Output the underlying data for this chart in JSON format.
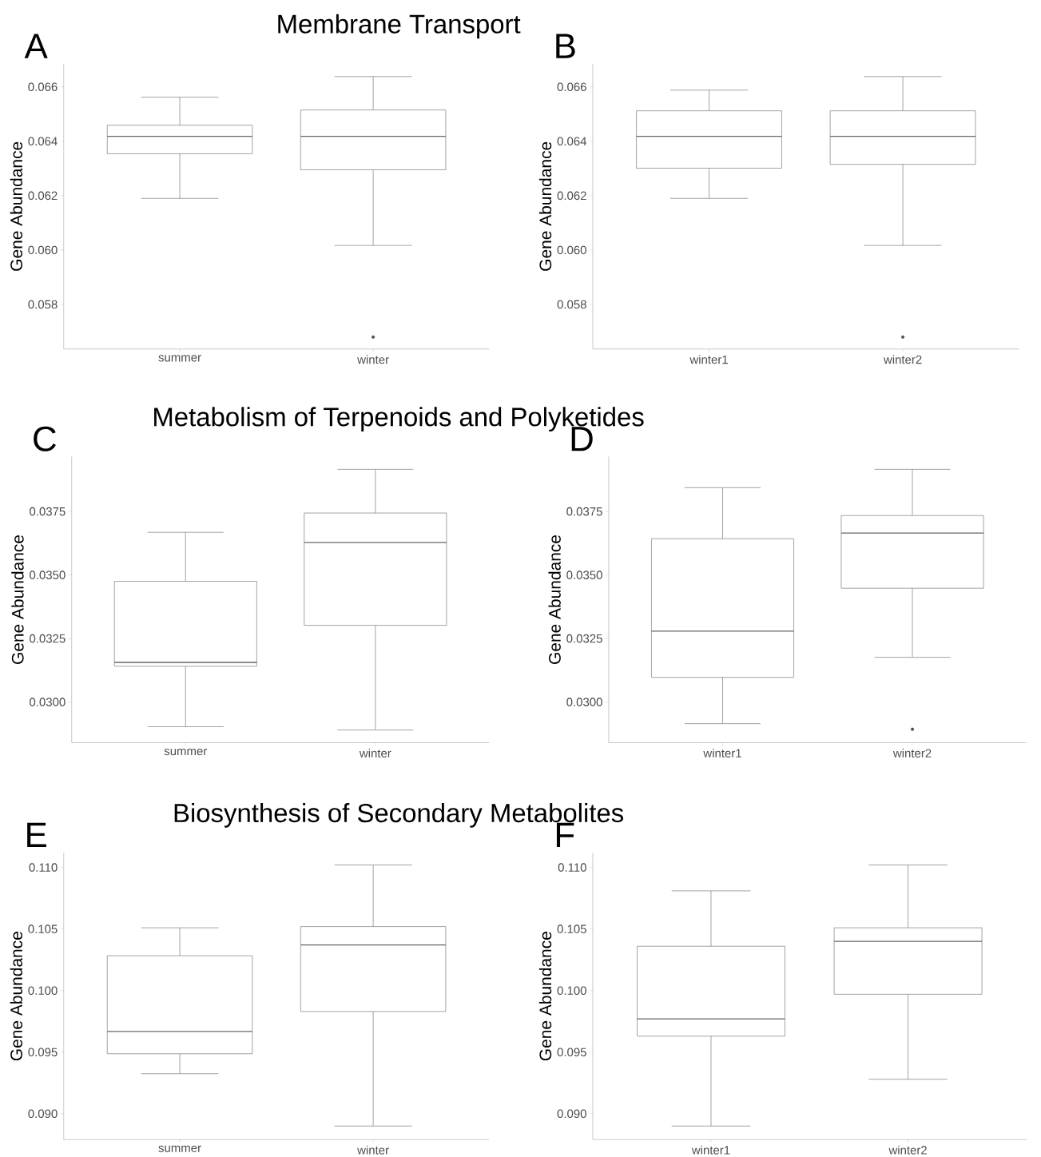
{
  "chart_data": [
    {
      "type": "box",
      "title": "Membrane Transport",
      "annotations": [
        "A"
      ],
      "ylabel": "Gene Abundance",
      "categories": [
        "summer",
        "winter"
      ],
      "color": "#8c8c8c",
      "ylim": [
        0.05636,
        0.06685
      ],
      "yticks": [
        0.058,
        {
          "value": 0.06,
          "label": "0.060"
        },
        0.062,
        0.064,
        0.066
      ],
      "boxes": [
        {
          "low": 0.0619,
          "q1": 0.06354,
          "median": 0.06418,
          "q3": 0.06459,
          "high": 0.06562
        },
        {
          "low": 0.06017,
          "q1": 0.06295,
          "median": 0.06418,
          "q3": 0.06515,
          "high": 0.06638,
          "outliers": [
            0.0568
          ]
        }
      ]
    },
    {
      "type": "box",
      "annotations": [
        "B"
      ],
      "ylabel": "Gene Abundance",
      "categories": [
        "winter1",
        "winter2"
      ],
      "color": "#8c8c8c",
      "ylim": [
        0.05636,
        0.06685
      ],
      "yticks": [
        0.058,
        {
          "value": 0.06,
          "label": "0.060"
        },
        0.062,
        0.064,
        0.066
      ],
      "boxes": [
        {
          "low": 0.0619,
          "q1": 0.06301,
          "median": 0.06418,
          "q3": 0.06512,
          "high": 0.06588
        },
        {
          "low": 0.06017,
          "q1": 0.06315,
          "median": 0.06418,
          "q3": 0.06512,
          "high": 0.06638,
          "outliers": [
            0.0568
          ]
        }
      ]
    },
    {
      "type": "box",
      "title": "Metabolism of Terpenoids and Polyketides",
      "annotations": [
        "C"
      ],
      "ylabel": "Gene Abundance",
      "categories": [
        "summer",
        "winter"
      ],
      "color": "#8c8c8c",
      "ylim": [
        0.0284,
        0.03966
      ],
      "yticks": [
        {
          "value": 0.03,
          "label": "0.0300"
        },
        0.0325,
        {
          "value": 0.035,
          "label": "0.0350"
        },
        0.0375
      ],
      "boxes": [
        {
          "low": 0.02903,
          "q1": 0.03141,
          "median": 0.03156,
          "q3": 0.03475,
          "high": 0.03668
        },
        {
          "low": 0.0289,
          "q1": 0.03302,
          "median": 0.03628,
          "q3": 0.03744,
          "high": 0.03916
        }
      ]
    },
    {
      "type": "box",
      "annotations": [
        "D"
      ],
      "ylabel": "Gene Abundance",
      "categories": [
        "winter1",
        "winter2"
      ],
      "color": "#8c8c8c",
      "ylim": [
        0.0284,
        0.03966
      ],
      "yticks": [
        {
          "value": 0.03,
          "label": "0.0300"
        },
        0.0325,
        {
          "value": 0.035,
          "label": "0.0350"
        },
        0.0375
      ],
      "boxes": [
        {
          "low": 0.02915,
          "q1": 0.03097,
          "median": 0.03279,
          "q3": 0.03643,
          "high": 0.03844
        },
        {
          "low": 0.03176,
          "q1": 0.03448,
          "median": 0.03665,
          "q3": 0.03734,
          "high": 0.03916,
          "outliers": [
            0.02893
          ]
        }
      ]
    },
    {
      "type": "box",
      "title": "Biosynthesis of Secondary Metabolites",
      "annotations": [
        "E"
      ],
      "ylabel": "Gene Abundance",
      "categories": [
        "summer",
        "winter"
      ],
      "color": "#8c8c8c",
      "ylim": [
        0.0879,
        0.1112
      ],
      "yticks": [
        {
          "value": 0.09,
          "label": "0.090"
        },
        0.095,
        {
          "value": 0.1,
          "label": "0.100"
        },
        0.105,
        {
          "value": 0.11,
          "label": "0.110"
        }
      ],
      "boxes": [
        {
          "low": 0.09325,
          "q1": 0.09487,
          "median": 0.09668,
          "q3": 0.10283,
          "high": 0.1051
        },
        {
          "low": 0.089,
          "q1": 0.0983,
          "median": 0.1037,
          "q3": 0.1052,
          "high": 0.1102
        }
      ]
    },
    {
      "type": "box",
      "annotations": [
        "F"
      ],
      "ylabel": "Gene Abundance",
      "categories": [
        "winter1",
        "winter2"
      ],
      "color": "#8c8c8c",
      "ylim": [
        0.0879,
        0.1112
      ],
      "yticks": [
        {
          "value": 0.09,
          "label": "0.090"
        },
        0.095,
        {
          "value": 0.1,
          "label": "0.100"
        },
        0.105,
        {
          "value": 0.11,
          "label": "0.110"
        }
      ],
      "boxes": [
        {
          "low": 0.089,
          "q1": 0.0963,
          "median": 0.0977,
          "q3": 0.1036,
          "high": 0.1081
        },
        {
          "low": 0.0928,
          "q1": 0.0997,
          "median": 0.104,
          "q3": 0.1051,
          "high": 0.1102
        }
      ]
    }
  ]
}
